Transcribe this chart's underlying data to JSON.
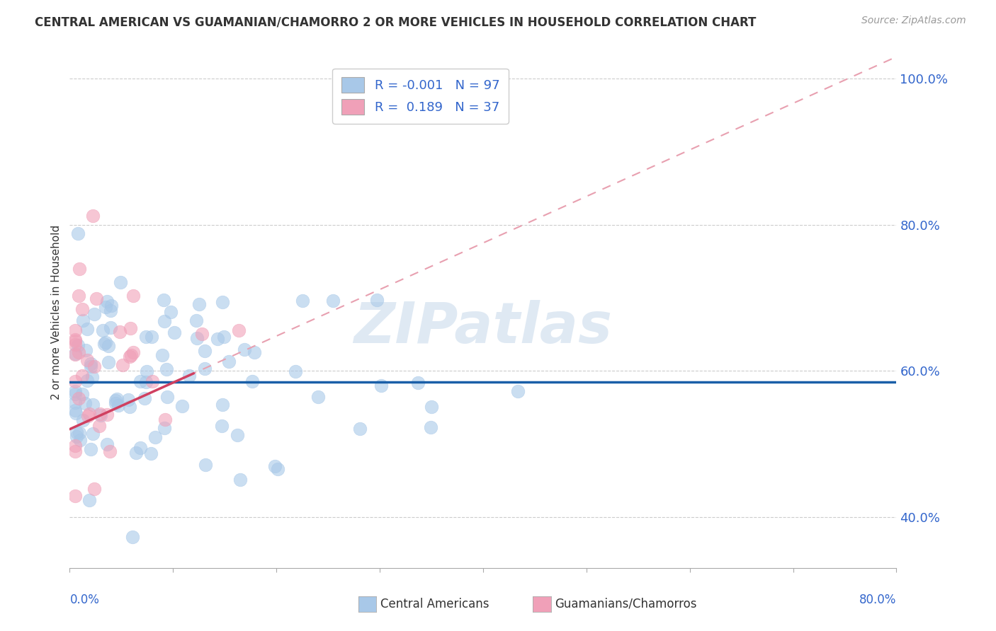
{
  "title": "CENTRAL AMERICAN VS GUAMANIAN/CHAMORRO 2 OR MORE VEHICLES IN HOUSEHOLD CORRELATION CHART",
  "source": "Source: ZipAtlas.com",
  "ylabel": "2 or more Vehicles in Household",
  "xmin": 0.0,
  "xmax": 0.8,
  "ymin": 0.33,
  "ymax": 1.03,
  "r_blue": -0.001,
  "n_blue": 97,
  "r_pink": 0.189,
  "n_pink": 37,
  "blue_color": "#a8c8e8",
  "pink_color": "#f0a0b8",
  "blue_line_color": "#1a5fa8",
  "pink_line_color": "#d04060",
  "pink_dash_color": "#e8a0b0",
  "watermark": "ZIPatlas",
  "watermark_color": "#c0d4e8",
  "ytick_vals": [
    0.4,
    0.6,
    0.8,
    1.0
  ],
  "ytick_labels": [
    "40.0%",
    "60.0%",
    "80.0%",
    "100.0%"
  ],
  "legend_r_blue": "-0.001",
  "legend_n_blue": "97",
  "legend_r_pink": "0.189",
  "legend_n_pink": "37",
  "blue_trend_y": 0.585,
  "pink_trend_x0": 0.0,
  "pink_trend_y0": 0.52,
  "pink_trend_x1": 0.8,
  "pink_trend_y1": 1.03
}
